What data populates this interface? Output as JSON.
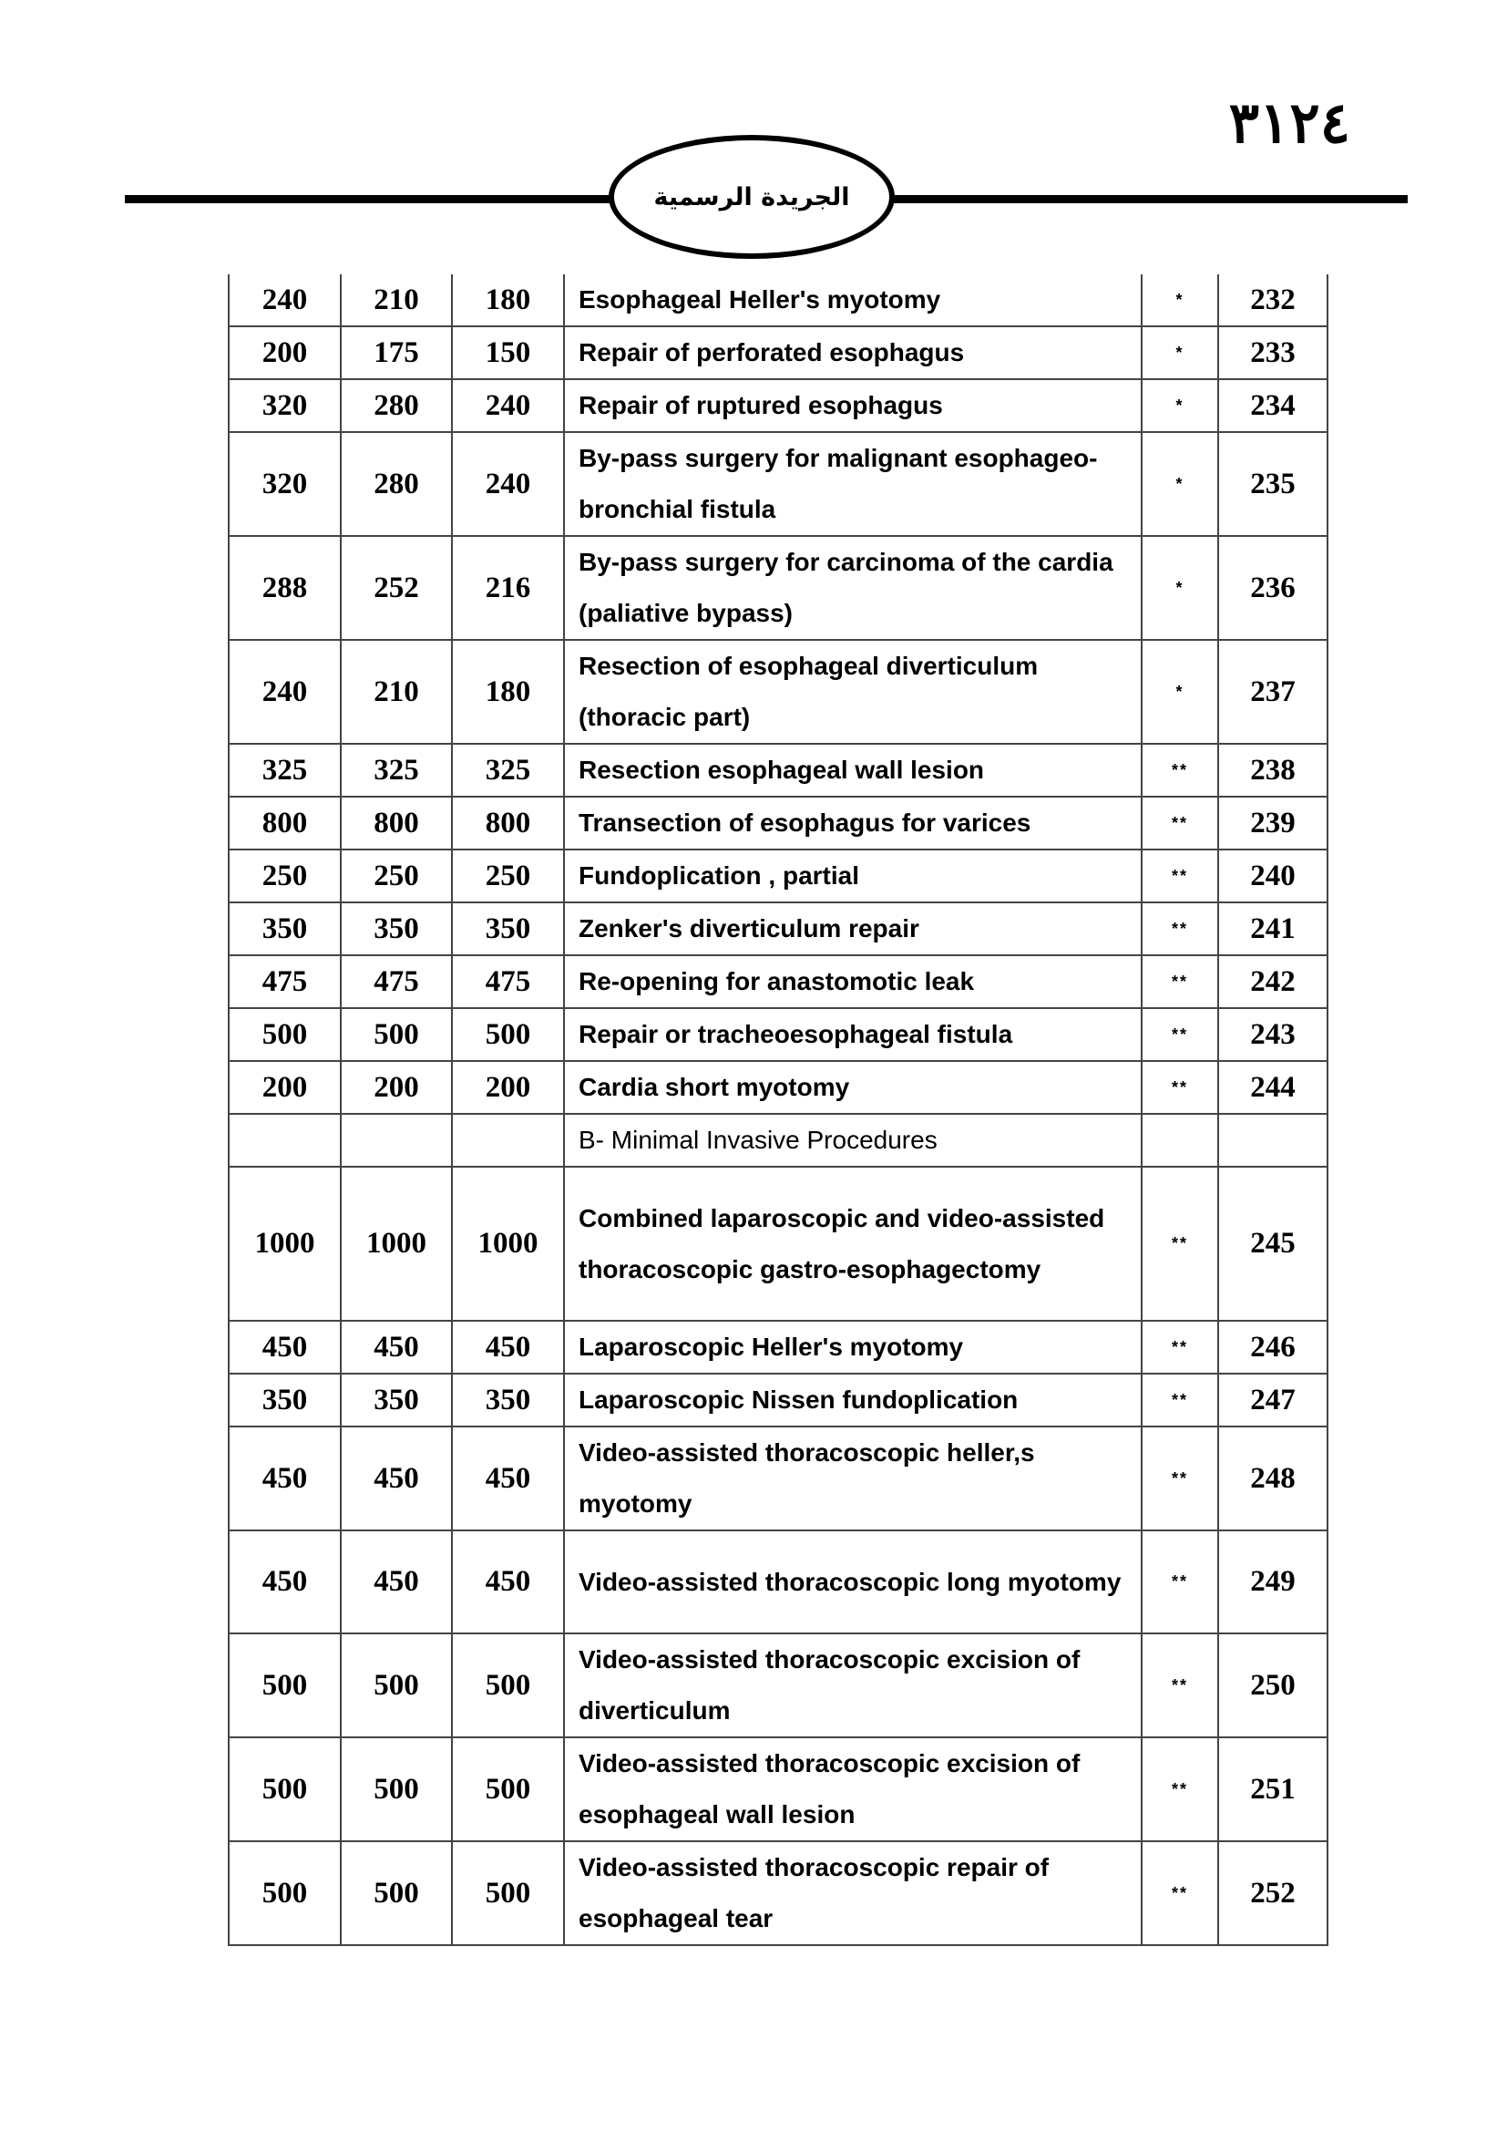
{
  "header": {
    "page_number": "٣١٢٤",
    "publication": "الجريدة الرسمية"
  },
  "table": {
    "rows": [
      {
        "c1": "240",
        "c2": "210",
        "c3": "180",
        "desc": "Esophageal Heller's myotomy",
        "mark": "*",
        "no": "232"
      },
      {
        "c1": "200",
        "c2": "175",
        "c3": "150",
        "desc": "Repair of perforated esophagus",
        "mark": "*",
        "no": "233"
      },
      {
        "c1": "320",
        "c2": "280",
        "c3": "240",
        "desc": "Repair of ruptured esophagus",
        "mark": "*",
        "no": "234"
      },
      {
        "c1": "320",
        "c2": "280",
        "c3": "240",
        "desc": "By-pass surgery for malignant esophageo-bronchial fistula",
        "mark": "*",
        "no": "235"
      },
      {
        "c1": "288",
        "c2": "252",
        "c3": "216",
        "desc": "By-pass surgery for carcinoma of the cardia (paliative bypass)",
        "mark": "*",
        "no": "236"
      },
      {
        "c1": "240",
        "c2": "210",
        "c3": "180",
        "desc": "Resection of esophageal diverticulum (thoracic part)",
        "mark": "*",
        "no": "237"
      },
      {
        "c1": "325",
        "c2": "325",
        "c3": "325",
        "desc": "Resection esophageal wall lesion",
        "mark": "**",
        "no": "238"
      },
      {
        "c1": "800",
        "c2": "800",
        "c3": "800",
        "desc": "Transection of esophagus for varices",
        "mark": "**",
        "no": "239"
      },
      {
        "c1": "250",
        "c2": "250",
        "c3": "250",
        "desc": "Fundoplication , partial",
        "mark": "**",
        "no": "240"
      },
      {
        "c1": "350",
        "c2": "350",
        "c3": "350",
        "desc": "Zenker's diverticulum repair",
        "mark": "**",
        "no": "241"
      },
      {
        "c1": "475",
        "c2": "475",
        "c3": "475",
        "desc": "Re-opening for anastomotic leak",
        "mark": "**",
        "no": "242"
      },
      {
        "c1": "500",
        "c2": "500",
        "c3": "500",
        "desc": "Repair or tracheoesophageal fistula",
        "mark": "**",
        "no": "243"
      },
      {
        "c1": "200",
        "c2": "200",
        "c3": "200",
        "desc": "Cardia short myotomy",
        "mark": "**",
        "no": "244"
      },
      {
        "c1": "",
        "c2": "",
        "c3": "",
        "desc": "B-  Minimal Invasive Procedures",
        "mark": "",
        "no": "",
        "section": true
      },
      {
        "c1": "1000",
        "c2": "1000",
        "c3": "1000",
        "desc": "Combined laparoscopic and video-assisted thoracoscopic gastro-esophagectomy",
        "mark": "**",
        "no": "245"
      },
      {
        "c1": "450",
        "c2": "450",
        "c3": "450",
        "desc": "Laparoscopic Heller's myotomy",
        "mark": "**",
        "no": "246"
      },
      {
        "c1": "350",
        "c2": "350",
        "c3": "350",
        "desc": "Laparoscopic Nissen fundoplication",
        "mark": "**",
        "no": "247"
      },
      {
        "c1": "450",
        "c2": "450",
        "c3": "450",
        "desc": "Video-assisted thoracoscopic heller,s myotomy",
        "mark": "**",
        "no": "248"
      },
      {
        "c1": "450",
        "c2": "450",
        "c3": "450",
        "desc": "Video-assisted thoracoscopic long myotomy",
        "mark": "**",
        "no": "249"
      },
      {
        "c1": "500",
        "c2": "500",
        "c3": "500",
        "desc": "Video-assisted thoracoscopic excision of diverticulum",
        "mark": "**",
        "no": "250"
      },
      {
        "c1": "500",
        "c2": "500",
        "c3": "500",
        "desc": "Video-assisted thoracoscopic excision of  esophageal wall lesion",
        "mark": "**",
        "no": "251"
      },
      {
        "c1": "500",
        "c2": "500",
        "c3": "500",
        "desc": "Video-assisted thoracoscopic repair of esophageal tear",
        "mark": "**",
        "no": "252"
      }
    ]
  }
}
